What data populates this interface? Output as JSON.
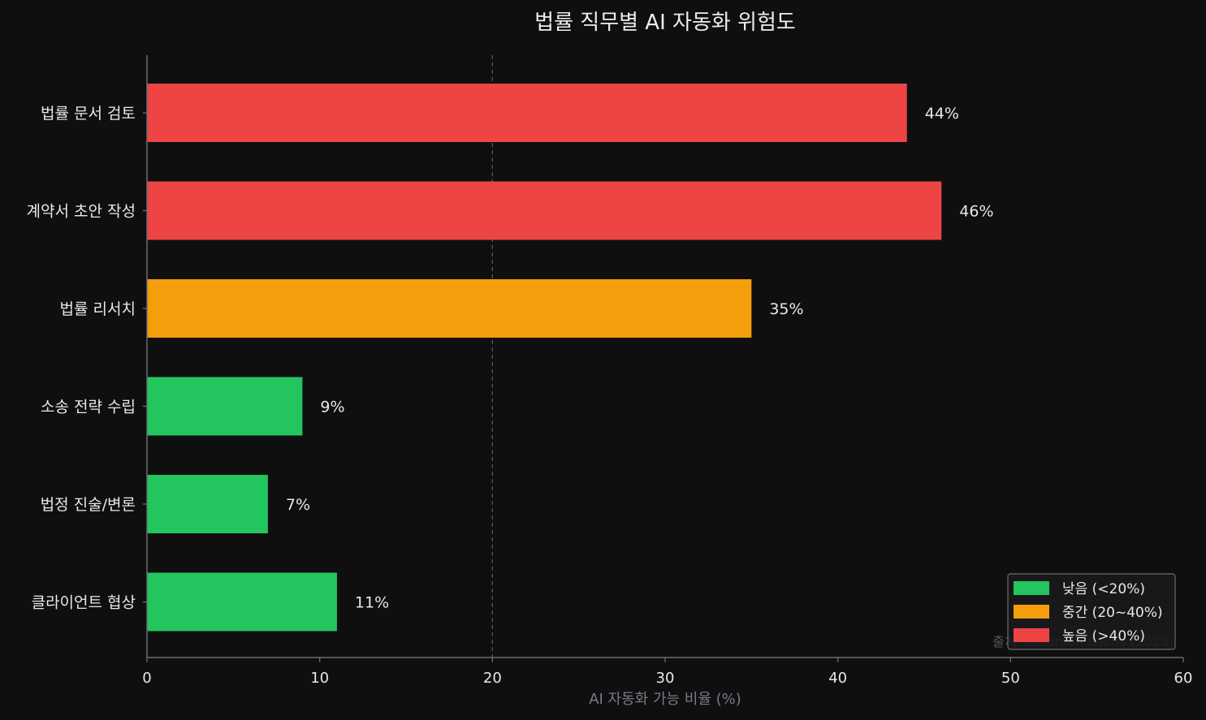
{
  "chart_data": {
    "type": "bar",
    "orientation": "horizontal",
    "title": "법률 직무별 AI 자동화 위험도",
    "xlabel": "AI 자동화 가능 비율 (%)",
    "ylabel": "",
    "xlim": [
      0,
      60
    ],
    "xticks": [
      "0",
      "10",
      "20",
      "30",
      "40",
      "50",
      "60"
    ],
    "reference_line": {
      "x": 20,
      "style": "dashed"
    },
    "categories": [
      "법률 문서 검토",
      "계약서 초안 작성",
      "법률 리서치",
      "소송 전략 수립",
      "법정 진술/변론",
      "클라이언트 협상"
    ],
    "values": [
      44,
      46,
      35,
      9,
      7,
      11
    ],
    "value_labels": [
      "44%",
      "46%",
      "35%",
      "9%",
      "7%",
      "11%"
    ],
    "bar_colors": [
      "#ef4444",
      "#ef4444",
      "#f59e0b",
      "#22c55e",
      "#22c55e",
      "#22c55e"
    ],
    "legend": {
      "position": "bottom-right",
      "entries": [
        {
          "label": "낮음 (<20%)",
          "color": "#22c55e"
        },
        {
          "label": "중간 (20~40%)",
          "color": "#f59e0b"
        },
        {
          "label": "높음 (>40%)",
          "color": "#ef4444"
        }
      ]
    },
    "source_note": "출처: Goldman Sachs (2023)",
    "grid": false,
    "colors": {
      "background": "#0f0f10",
      "text": "#e8e8e8",
      "axis": "#6b6b75",
      "axis_label": "#7a7a88",
      "source_note": "#55555e"
    }
  }
}
